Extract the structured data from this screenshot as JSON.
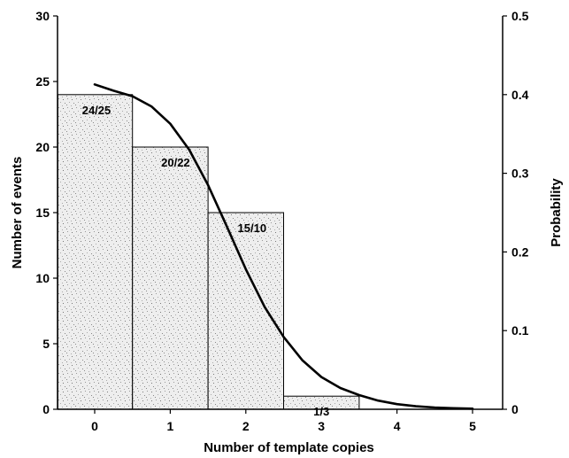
{
  "chart_data": {
    "type": "bar",
    "categories": [
      "0",
      "1",
      "2",
      "3",
      "4",
      "5"
    ],
    "x_ticks": [
      "0",
      "1",
      "2",
      "3",
      "4",
      "5"
    ],
    "xlabel": "Number of template copies",
    "ylabel": "Number of events",
    "y2label": "Probability",
    "ylim": [
      0,
      30
    ],
    "y2lim": [
      0,
      0.5
    ],
    "y_ticks": [
      "0",
      "5",
      "10",
      "15",
      "20",
      "25",
      "30"
    ],
    "y2_ticks": [
      "0",
      "0.1",
      "0.2",
      "0.3",
      "0.4",
      "0.5"
    ],
    "bars": [
      {
        "category": "0",
        "value": 24,
        "label": "24/25"
      },
      {
        "category": "1",
        "value": 20,
        "label": "20/22"
      },
      {
        "category": "2",
        "value": 15,
        "label": "15/10"
      },
      {
        "category": "3",
        "value": 1,
        "label": "1/3"
      }
    ],
    "curve": {
      "axis": "right",
      "x": [
        0,
        0.25,
        0.5,
        0.75,
        1.0,
        1.25,
        1.5,
        1.75,
        2.0,
        2.25,
        2.5,
        2.75,
        3.0,
        3.25,
        3.5,
        3.75,
        4.0,
        4.25,
        4.5,
        4.75,
        5.0
      ],
      "y": [
        0.413,
        0.405,
        0.398,
        0.385,
        0.363,
        0.33,
        0.285,
        0.232,
        0.178,
        0.13,
        0.092,
        0.062,
        0.041,
        0.027,
        0.018,
        0.011,
        0.0065,
        0.0038,
        0.0022,
        0.0013,
        0.0008
      ]
    },
    "grid": false,
    "legend": "none",
    "bar_fill": "stippled gray",
    "colors": {
      "ink": "#000000",
      "background": "#ffffff"
    }
  }
}
